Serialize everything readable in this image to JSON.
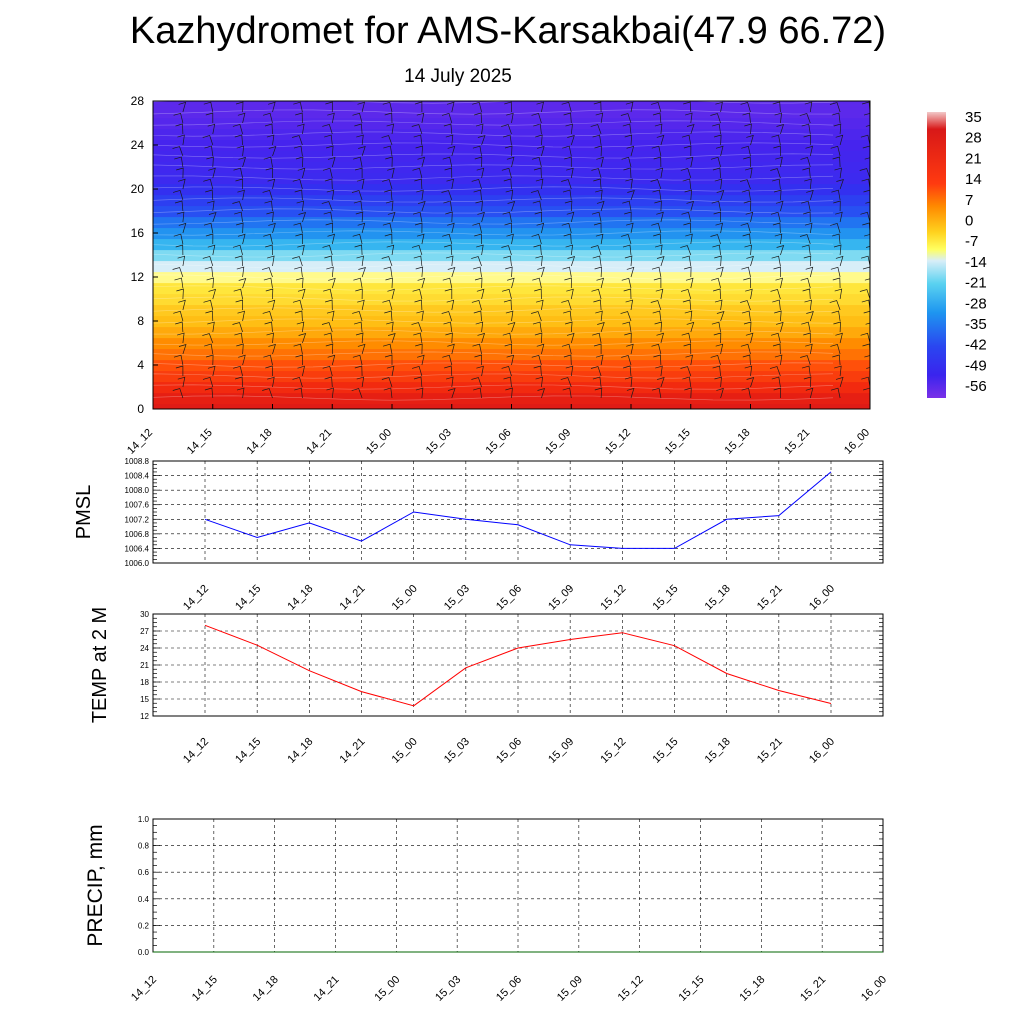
{
  "title": "Kazhydromet for AMS-Karsakbai(47.9 66.72)",
  "subtitle": "14 July 2025",
  "chart_data": [
    {
      "type": "heatmap",
      "y_ticks": [
        "0",
        "4",
        "8",
        "12",
        "16",
        "20",
        "24",
        "28"
      ],
      "ylim": [
        0,
        28
      ],
      "x_ticks": [
        "14_12",
        "14_15",
        "14_18",
        "14_21",
        "15_00",
        "15_03",
        "15_06",
        "15_09",
        "15_12",
        "15_15",
        "15_18",
        "15_21",
        "16_00"
      ],
      "colorbar_labels": [
        "35",
        "28",
        "21",
        "14",
        "7",
        "0",
        "-7",
        "-14",
        "-21",
        "-28",
        "-35",
        "-42",
        "-49",
        "-56"
      ],
      "colorbar_range": [
        -63,
        35
      ],
      "rows_temperature": [
        {
          "level": 0,
          "value": 26
        },
        {
          "level": 1,
          "value": 24
        },
        {
          "level": 2,
          "value": 20
        },
        {
          "level": 3,
          "value": 17
        },
        {
          "level": 4,
          "value": 14
        },
        {
          "level": 5,
          "value": 10
        },
        {
          "level": 6,
          "value": 7
        },
        {
          "level": 7,
          "value": 3
        },
        {
          "level": 8,
          "value": 0
        },
        {
          "level": 9,
          "value": -2
        },
        {
          "level": 10,
          "value": -5
        },
        {
          "level": 11,
          "value": -7
        },
        {
          "level": 12,
          "value": -10
        },
        {
          "level": 13,
          "value": -14
        },
        {
          "level": 14,
          "value": -19
        },
        {
          "level": 15,
          "value": -26
        },
        {
          "level": 16,
          "value": -32
        },
        {
          "level": 17,
          "value": -37
        },
        {
          "level": 18,
          "value": -42
        },
        {
          "level": 19,
          "value": -46
        },
        {
          "level": 20,
          "value": -50
        },
        {
          "level": 21,
          "value": -53
        },
        {
          "level": 22,
          "value": -54
        },
        {
          "level": 23,
          "value": -55
        },
        {
          "level": 24,
          "value": -56
        },
        {
          "level": 25,
          "value": -57
        },
        {
          "level": 26,
          "value": -58
        },
        {
          "level": 27,
          "value": -59
        },
        {
          "level": 28,
          "value": -59
        }
      ],
      "barbs": "wind barbs at each time column and level"
    },
    {
      "type": "line",
      "ylabel": "PMSL",
      "y_ticks": [
        "1006.0",
        "1006.4",
        "1006.8",
        "1007.2",
        "1007.6",
        "1008.0",
        "1008.4",
        "1008.8"
      ],
      "ylim": [
        1006.0,
        1008.8
      ],
      "x": [
        "14_12",
        "14_15",
        "14_18",
        "14_21",
        "15_00",
        "15_03",
        "15_06",
        "15_09",
        "15_12",
        "15_15",
        "15_18",
        "15_21",
        "16_00"
      ],
      "values": [
        1007.2,
        1006.7,
        1007.1,
        1006.6,
        1007.4,
        1007.2,
        1007.05,
        1006.5,
        1006.4,
        1006.4,
        1007.2,
        1007.3,
        1008.5
      ],
      "color": "#0000ff"
    },
    {
      "type": "line",
      "ylabel": "TEMP at 2 M",
      "y_ticks": [
        "12",
        "15",
        "18",
        "21",
        "24",
        "27",
        "30"
      ],
      "ylim": [
        12,
        30
      ],
      "x": [
        "14_12",
        "14_15",
        "14_18",
        "14_21",
        "15_00",
        "15_03",
        "15_06",
        "15_09",
        "15_12",
        "15_15",
        "15_18",
        "15_21",
        "16_00"
      ],
      "values": [
        28.0,
        24.5,
        20.0,
        16.3,
        13.8,
        20.5,
        24.0,
        25.5,
        26.7,
        24.4,
        19.5,
        16.5,
        14.2
      ],
      "color": "#ff0000"
    },
    {
      "type": "line",
      "ylabel": "PRECIP, mm",
      "y_ticks": [
        "0.0",
        "0.2",
        "0.4",
        "0.6",
        "0.8",
        "1.0"
      ],
      "ylim": [
        0,
        1
      ],
      "x": [
        "14_12",
        "14_15",
        "14_18",
        "14_21",
        "15_00",
        "15_03",
        "15_06",
        "15_09",
        "15_12",
        "15_15",
        "15_18",
        "15_21",
        "16_00"
      ],
      "values": [
        0,
        0,
        0,
        0,
        0,
        0,
        0,
        0,
        0,
        0,
        0,
        0,
        0
      ],
      "color": "#006400"
    }
  ]
}
